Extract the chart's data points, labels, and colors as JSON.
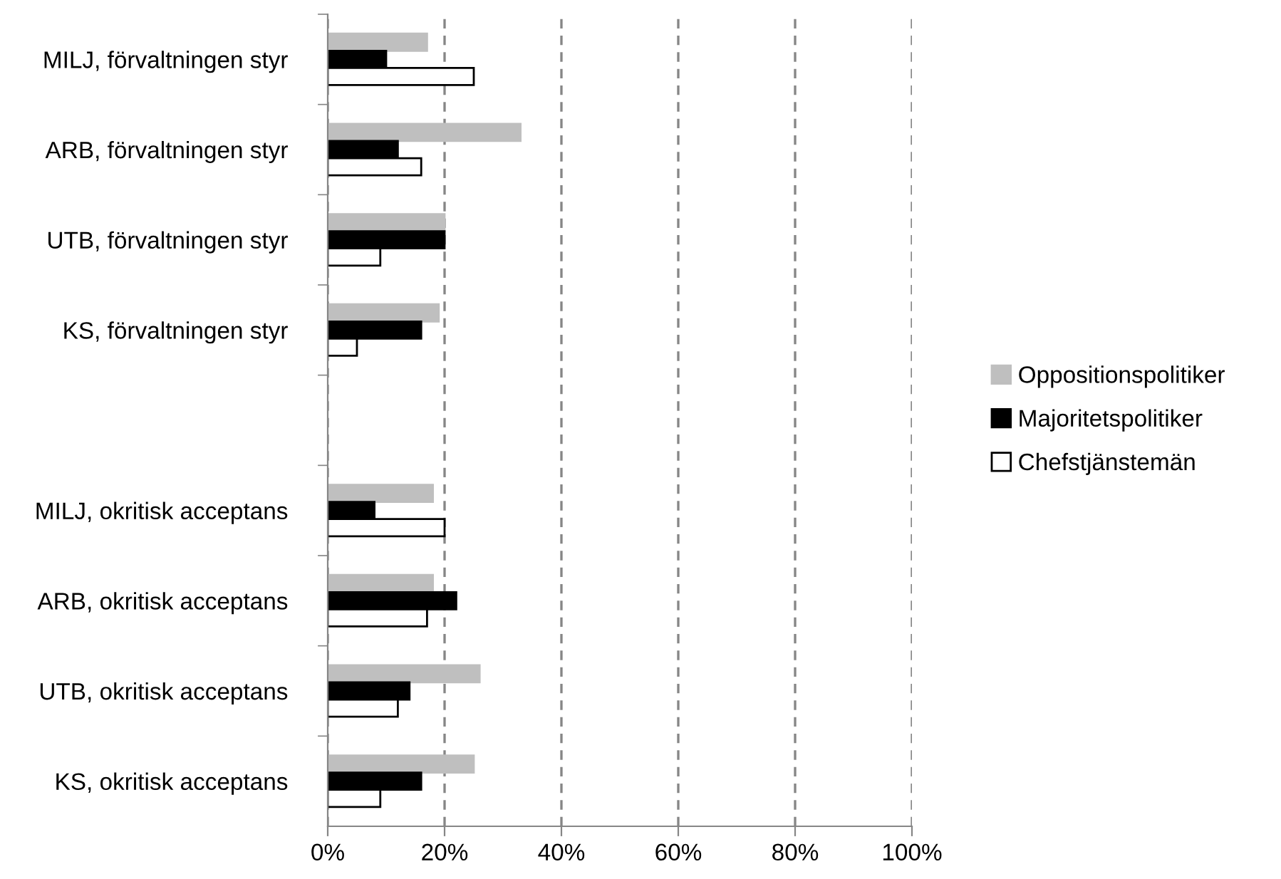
{
  "chart_data": {
    "type": "bar",
    "orientation": "horizontal",
    "categories": [
      "MILJ, förvaltningen styr",
      "ARB, förvaltningen styr",
      "UTB, förvaltningen styr",
      "KS, förvaltningen styr",
      null,
      "MILJ, okritisk acceptans",
      "ARB, okritisk acceptans",
      "UTB, okritisk acceptans",
      "KS, okritisk acceptans"
    ],
    "series": [
      {
        "name": "Oppositionspolitiker",
        "color": "#bfbfbf",
        "values": [
          17,
          33,
          20,
          19,
          null,
          18,
          18,
          26,
          25
        ]
      },
      {
        "name": "Majoritetspolitiker",
        "color": "#000000",
        "values": [
          10,
          12,
          20,
          16,
          null,
          8,
          22,
          14,
          16
        ]
      },
      {
        "name": "Chefstjänstemän",
        "color": "#ffffff",
        "values": [
          25,
          16,
          9,
          5,
          null,
          20,
          17,
          12,
          9
        ]
      }
    ],
    "xlim": [
      0,
      100
    ],
    "xticks": [
      {
        "value": 0,
        "label": "0%"
      },
      {
        "value": 20,
        "label": "20%"
      },
      {
        "value": 40,
        "label": "40%"
      },
      {
        "value": 60,
        "label": "60%"
      },
      {
        "value": 80,
        "label": "80%"
      },
      {
        "value": 100,
        "label": "100%"
      }
    ],
    "grid": "x",
    "line_style": "dashed",
    "legend": "right"
  }
}
